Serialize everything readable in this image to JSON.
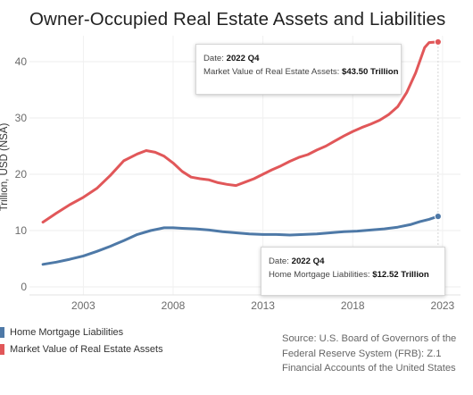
{
  "page": {
    "title": "Owner-Occupied Real Estate Assets and Liabilities"
  },
  "chart_data": {
    "type": "line",
    "title": "Owner-Occupied Real Estate Assets and Liabilities",
    "xlabel": "",
    "ylabel": "Trillion, USD (NSA)",
    "xlim": [
      2000,
      2024
    ],
    "ylim": [
      0,
      45
    ],
    "x_ticks": [
      2003,
      2008,
      2013,
      2018,
      2023
    ],
    "y_ticks": [
      0,
      10,
      20,
      30,
      40
    ],
    "grid": true,
    "legend_position": "bottom-left",
    "series": [
      {
        "name": "Home Mortgage Liabilities",
        "color": "#4e79a7",
        "x": [
          2000.75,
          2001.5,
          2002.25,
          2003,
          2003.75,
          2004.5,
          2005.25,
          2006,
          2006.75,
          2007.5,
          2008,
          2008.5,
          2009.25,
          2010,
          2010.75,
          2011.5,
          2012.25,
          2013,
          2013.75,
          2014.5,
          2015.25,
          2016,
          2016.75,
          2017.5,
          2018.25,
          2019,
          2019.75,
          2020.5,
          2021.25,
          2021.75,
          2022.25,
          2022.75
        ],
        "values": [
          4.0,
          4.4,
          4.9,
          5.5,
          6.3,
          7.2,
          8.2,
          9.3,
          10.0,
          10.5,
          10.5,
          10.4,
          10.3,
          10.1,
          9.8,
          9.6,
          9.4,
          9.3,
          9.3,
          9.2,
          9.3,
          9.4,
          9.6,
          9.8,
          9.9,
          10.1,
          10.3,
          10.6,
          11.1,
          11.6,
          12.0,
          12.52
        ]
      },
      {
        "name": "Market Value of Real Estate Assets",
        "color": "#e15759",
        "x": [
          2000.75,
          2001.5,
          2002.25,
          2003,
          2003.75,
          2004.5,
          2005.25,
          2006,
          2006.5,
          2007,
          2007.5,
          2008,
          2008.5,
          2009,
          2009.5,
          2010,
          2010.5,
          2011,
          2011.5,
          2012,
          2012.5,
          2013,
          2013.5,
          2014,
          2014.5,
          2015,
          2015.5,
          2016,
          2016.5,
          2017,
          2017.5,
          2018,
          2018.5,
          2019,
          2019.5,
          2020,
          2020.5,
          2021,
          2021.5,
          2022,
          2022.25,
          2022.75
        ],
        "values": [
          11.5,
          13.1,
          14.6,
          15.9,
          17.5,
          19.8,
          22.4,
          23.6,
          24.2,
          23.9,
          23.2,
          22.0,
          20.5,
          19.5,
          19.2,
          19.0,
          18.5,
          18.2,
          18.0,
          18.6,
          19.2,
          20.0,
          20.8,
          21.5,
          22.3,
          23.0,
          23.5,
          24.3,
          25.0,
          25.9,
          26.8,
          27.6,
          28.3,
          28.9,
          29.6,
          30.6,
          32.0,
          34.5,
          38.0,
          42.5,
          43.4,
          43.5
        ]
      }
    ],
    "tooltips": [
      {
        "series": "Market Value of Real Estate Assets",
        "date_label": "Date:",
        "date": "2022 Q4",
        "value_label": "Market Value of Real Estate Assets:",
        "value": "$43.50 Trillion"
      },
      {
        "series": "Home Mortgage Liabilities",
        "date_label": "Date:",
        "date": "2022 Q4",
        "value_label": "Home Mortgage Liabilities:",
        "value": "$12.52 Trillion"
      }
    ],
    "source": "Source: U.S. Board of Governors of the Federal Reserve System (FRB): Z.1 Financial Accounts of the United States"
  }
}
